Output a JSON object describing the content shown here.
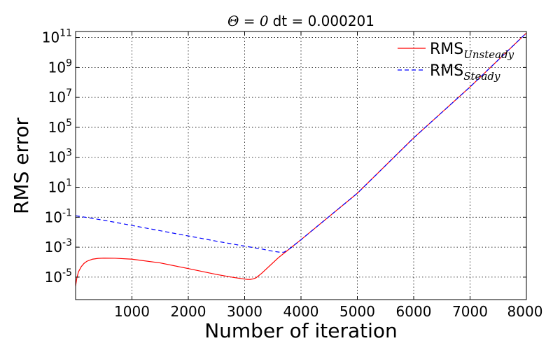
{
  "chart_data": {
    "type": "line",
    "title": {
      "math": "Θ = 0",
      "text": "dt = 0.000201"
    },
    "xlabel": "Number of iteration",
    "ylabel": "RMS error",
    "xlim": [
      0,
      8000
    ],
    "ylim_log10": [
      -6.5,
      11.4
    ],
    "yscale": "log",
    "grid": true,
    "legend_position": "top-right",
    "x_ticks": [
      {
        "value": 1000,
        "label": "1000"
      },
      {
        "value": 2000,
        "label": "2000"
      },
      {
        "value": 3000,
        "label": "3000"
      },
      {
        "value": 4000,
        "label": "4000"
      },
      {
        "value": 5000,
        "label": "5000"
      },
      {
        "value": 6000,
        "label": "6000"
      },
      {
        "value": 7000,
        "label": "7000"
      },
      {
        "value": 8000,
        "label": "8000"
      }
    ],
    "y_ticks": [
      {
        "exp": -5,
        "base": "10",
        "sup": "-5"
      },
      {
        "exp": -3,
        "base": "10",
        "sup": "-3"
      },
      {
        "exp": -1,
        "base": "10",
        "sup": "-1"
      },
      {
        "exp": 1,
        "base": "10",
        "sup": "1"
      },
      {
        "exp": 3,
        "base": "10",
        "sup": "3"
      },
      {
        "exp": 5,
        "base": "10",
        "sup": "5"
      },
      {
        "exp": 7,
        "base": "10",
        "sup": "7"
      },
      {
        "exp": 9,
        "base": "10",
        "sup": "9"
      },
      {
        "exp": 11,
        "base": "10",
        "sup": "11"
      }
    ],
    "series": [
      {
        "name": "RMS",
        "subscript": "Unsteady",
        "color": "#ff0000",
        "dash": "solid",
        "x": [
          0,
          20,
          50,
          100,
          150,
          200,
          300,
          400,
          500,
          700,
          1000,
          1500,
          2000,
          2500,
          2800,
          3000,
          3050,
          3100,
          3150,
          3200,
          3300,
          3400,
          3600,
          3800,
          4000,
          5000,
          6000,
          7000,
          8000
        ],
        "log10_y": [
          -5.6,
          -5.1,
          -4.65,
          -4.3,
          -4.08,
          -3.94,
          -3.8,
          -3.75,
          -3.73,
          -3.74,
          -3.8,
          -4.05,
          -4.43,
          -4.82,
          -5.02,
          -5.13,
          -5.15,
          -5.15,
          -5.12,
          -5.05,
          -4.75,
          -4.4,
          -3.7,
          -3.1,
          -2.5,
          0.6,
          4.3,
          7.7,
          11.3
        ]
      },
      {
        "name": "RMS",
        "subscript": "Steady",
        "color": "#0000ff",
        "dash": "dashed",
        "x": [
          0,
          500,
          1000,
          1500,
          2000,
          2500,
          3000,
          3300,
          3500,
          3650,
          3700,
          3800,
          4000,
          5000,
          6000,
          7000,
          8000
        ],
        "log10_y": [
          -0.9,
          -1.2,
          -1.55,
          -1.9,
          -2.25,
          -2.6,
          -2.93,
          -3.12,
          -3.27,
          -3.35,
          -3.33,
          -3.1,
          -2.5,
          0.6,
          4.3,
          7.7,
          11.3
        ]
      }
    ]
  }
}
